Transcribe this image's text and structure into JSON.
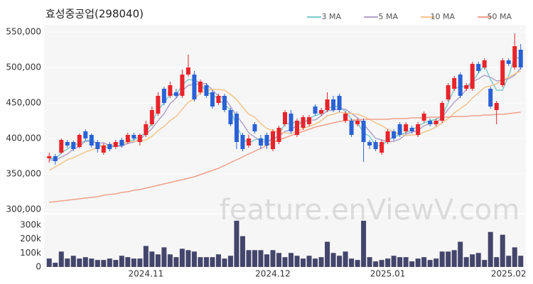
{
  "chart_data": {
    "type": "candlestick",
    "title": "효성중공업(298040)",
    "watermark": "feature.enViewV.com",
    "categories": [
      null,
      null,
      null,
      null,
      null,
      null,
      null,
      null,
      null,
      null,
      null,
      null,
      null,
      null,
      null,
      null,
      "2024.11",
      null,
      null,
      null,
      null,
      null,
      null,
      null,
      null,
      null,
      null,
      null,
      null,
      null,
      null,
      null,
      null,
      null,
      null,
      null,
      null,
      "2024.12",
      null,
      null,
      null,
      null,
      null,
      null,
      null,
      null,
      null,
      null,
      null,
      null,
      null,
      null,
      null,
      null,
      null,
      null,
      "2025.01",
      null,
      null,
      null,
      null,
      null,
      null,
      null,
      null,
      null,
      null,
      null,
      null,
      null,
      null,
      null,
      null,
      null,
      null,
      null,
      "2025.02",
      null,
      null
    ],
    "open": [
      372000,
      375000,
      380000,
      395000,
      395000,
      388000,
      410000,
      405000,
      395000,
      380000,
      392000,
      388000,
      398000,
      395000,
      405000,
      395000,
      405000,
      420000,
      435000,
      470000,
      460000,
      465000,
      460000,
      490000,
      490000,
      465000,
      475000,
      465000,
      450000,
      460000,
      440000,
      435000,
      405000,
      390000,
      420000,
      400000,
      405000,
      385000,
      395000,
      420000,
      435000,
      405000,
      415000,
      420000,
      445000,
      435000,
      440000,
      455000,
      460000,
      425000,
      425000,
      420000,
      425000,
      395000,
      395000,
      380000,
      395000,
      410000,
      420000,
      410000,
      415000,
      405000,
      425000,
      425000,
      420000,
      425000,
      455000,
      470000,
      490000,
      470000,
      470000,
      505000,
      500000,
      470000,
      440000,
      475000,
      510000,
      500000,
      525000
    ],
    "high": [
      380000,
      378000,
      400000,
      398000,
      397000,
      407000,
      413000,
      407000,
      398000,
      393000,
      395000,
      398000,
      401000,
      408000,
      408000,
      407000,
      425000,
      445000,
      465000,
      473000,
      480000,
      470000,
      497000,
      518000,
      495000,
      483000,
      478000,
      468000,
      463000,
      463000,
      443000,
      438000,
      408000,
      405000,
      423000,
      405000,
      408000,
      413000,
      418000,
      440000,
      440000,
      428000,
      433000,
      433000,
      448000,
      443000,
      465000,
      460000,
      463000,
      438000,
      428000,
      428000,
      428000,
      398000,
      398000,
      398000,
      413000,
      413000,
      423000,
      423000,
      418000,
      423000,
      438000,
      428000,
      428000,
      453000,
      478000,
      488000,
      493000,
      478000,
      508000,
      508000,
      513000,
      473000,
      453000,
      513000,
      513000,
      548000,
      533000
    ],
    "low": [
      366000,
      363000,
      378000,
      387000,
      382000,
      386000,
      397000,
      387000,
      380000,
      377000,
      382000,
      385000,
      387000,
      392000,
      397000,
      390000,
      402000,
      417000,
      432000,
      447000,
      457000,
      457000,
      457000,
      487000,
      452000,
      462000,
      457000,
      442000,
      447000,
      437000,
      417000,
      385000,
      382000,
      387000,
      407000,
      385000,
      385000,
      382000,
      392000,
      417000,
      407000,
      402000,
      412000,
      417000,
      432000,
      432000,
      437000,
      437000,
      437000,
      422000,
      402000,
      417000,
      367000,
      385000,
      382000,
      377000,
      392000,
      397000,
      402000,
      407000,
      407000,
      402000,
      422000,
      417000,
      417000,
      422000,
      452000,
      467000,
      457000,
      467000,
      467000,
      492000,
      497000,
      442000,
      420000,
      472000,
      502000,
      497000,
      497000
    ],
    "close": [
      375000,
      368000,
      398000,
      390000,
      385000,
      405000,
      400000,
      390000,
      385000,
      390000,
      385000,
      395000,
      390000,
      405000,
      400000,
      405000,
      420000,
      440000,
      460000,
      450000,
      475000,
      460000,
      490000,
      500000,
      455000,
      480000,
      460000,
      445000,
      460000,
      440000,
      420000,
      395000,
      385000,
      400000,
      410000,
      390000,
      390000,
      410000,
      415000,
      437000,
      410000,
      425000,
      430000,
      430000,
      435000,
      440000,
      455000,
      440000,
      440000,
      435000,
      405000,
      425000,
      395000,
      390000,
      385000,
      395000,
      410000,
      400000,
      405000,
      420000,
      410000,
      420000,
      435000,
      420000,
      425000,
      450000,
      475000,
      485000,
      460000,
      475000,
      505000,
      495000,
      510000,
      445000,
      450000,
      510000,
      505000,
      530000,
      500000
    ],
    "up_color": "#e8242a",
    "down_color": "#2a62d6",
    "ylim": [
      295000,
      555000
    ],
    "yticks": [
      {
        "value": 300000,
        "label": "300,000"
      },
      {
        "value": 350000,
        "label": "350,000"
      },
      {
        "value": 400000,
        "label": "400,000"
      },
      {
        "value": 450000,
        "label": "450,000"
      },
      {
        "value": 500000,
        "label": "500,000"
      },
      {
        "value": 550000,
        "label": "550,000"
      }
    ],
    "grid": true,
    "legend": "top-right",
    "series": [
      {
        "name": "3 MA",
        "color": "#7ccccc",
        "values": [
          372000,
          371000,
          380000,
          385000,
          391000,
          393000,
          397000,
          398000,
          392000,
          388000,
          387000,
          390000,
          390000,
          397000,
          398000,
          403000,
          408000,
          422000,
          440000,
          450000,
          462000,
          462000,
          475000,
          483000,
          482000,
          478000,
          465000,
          462000,
          455000,
          448000,
          440000,
          418000,
          400000,
          393000,
          398000,
          400000,
          397000,
          397000,
          405000,
          421000,
          421000,
          424000,
          422000,
          428000,
          432000,
          435000,
          443000,
          445000,
          445000,
          438000,
          427000,
          422000,
          408000,
          403000,
          390000,
          390000,
          397000,
          402000,
          405000,
          408000,
          412000,
          417000,
          422000,
          425000,
          427000,
          432000,
          450000,
          470000,
          473000,
          473000,
          480000,
          492000,
          503000,
          483000,
          468000,
          468000,
          488000,
          515000,
          512000
        ]
      },
      {
        "name": "5 MA",
        "color": "#b1a1c9",
        "values": [
          370000,
          369000,
          374000,
          378000,
          385000,
          389000,
          396000,
          396000,
          393000,
          394000,
          390000,
          389000,
          389000,
          393000,
          395000,
          399000,
          406000,
          414000,
          425000,
          435000,
          449000,
          457000,
          467000,
          475000,
          476000,
          477000,
          477000,
          468000,
          460000,
          457000,
          445000,
          432000,
          421000,
          408000,
          402000,
          396000,
          395000,
          400000,
          403000,
          410000,
          412000,
          419000,
          423000,
          426000,
          426000,
          432000,
          439000,
          440000,
          442000,
          441000,
          435000,
          429000,
          420000,
          410000,
          400000,
          398000,
          395000,
          396000,
          399000,
          406000,
          409000,
          411000,
          418000,
          421000,
          422000,
          430000,
          441000,
          451000,
          459000,
          469000,
          480000,
          484000,
          489000,
          486000,
          481000,
          482000,
          484000,
          489000,
          499000
        ]
      },
      {
        "name": "10 MA",
        "color": "#f2c48e",
        "values": [
          355000,
          360000,
          365000,
          370000,
          373000,
          377000,
          381000,
          384000,
          387000,
          390000,
          391000,
          394000,
          393000,
          395000,
          396000,
          396000,
          398000,
          403000,
          411000,
          417000,
          425000,
          431000,
          441000,
          451000,
          456000,
          464000,
          468000,
          469000,
          469000,
          468000,
          462000,
          455000,
          444000,
          434000,
          430000,
          421000,
          414000,
          411000,
          408000,
          408000,
          407000,
          410000,
          414000,
          417000,
          420000,
          425000,
          432000,
          434000,
          437000,
          436000,
          435000,
          434000,
          431000,
          427000,
          422000,
          418000,
          413000,
          409000,
          406000,
          404000,
          405000,
          405000,
          409000,
          412000,
          416000,
          422000,
          428000,
          436000,
          442000,
          448000,
          457000,
          464000,
          472000,
          474000,
          477000,
          483000,
          486000,
          491000,
          495000
        ]
      },
      {
        "name": "50 MA",
        "color": "#f0a08a",
        "values": [
          310000,
          311000,
          312000,
          313000,
          314000,
          315000,
          316000,
          317000,
          318000,
          320000,
          321000,
          322000,
          324000,
          325000,
          327000,
          328000,
          330000,
          332000,
          334000,
          336000,
          338000,
          340000,
          342000,
          344000,
          346000,
          349000,
          352000,
          355000,
          358000,
          362000,
          366000,
          370000,
          374000,
          378000,
          382000,
          386000,
          390000,
          394000,
          398000,
          401000,
          404000,
          407000,
          410000,
          413000,
          416000,
          418000,
          420000,
          422000,
          424000,
          425000,
          426000,
          426000,
          427000,
          427000,
          427000,
          427000,
          427000,
          428000,
          428000,
          428000,
          429000,
          429000,
          429000,
          430000,
          430000,
          430000,
          430000,
          431000,
          431000,
          431000,
          432000,
          432000,
          433000,
          433000,
          434000,
          434000,
          435000,
          436000,
          437000
        ]
      }
    ],
    "volume": {
      "color": "#43456b",
      "ylim": [
        0,
        375000
      ],
      "yticks": [
        0,
        {
          "value": 100000,
          "label": "100k"
        },
        {
          "value": 200000,
          "label": "200k"
        },
        {
          "value": 300000,
          "label": "300k"
        }
      ],
      "values": [
        60000,
        30000,
        110000,
        60000,
        80000,
        60000,
        70000,
        60000,
        50000,
        50000,
        60000,
        50000,
        80000,
        70000,
        60000,
        60000,
        150000,
        110000,
        90000,
        140000,
        90000,
        70000,
        130000,
        120000,
        110000,
        70000,
        70000,
        70000,
        90000,
        60000,
        80000,
        330000,
        220000,
        120000,
        120000,
        120000,
        90000,
        120000,
        100000,
        70000,
        100000,
        80000,
        60000,
        80000,
        60000,
        70000,
        180000,
        100000,
        80000,
        110000,
        60000,
        50000,
        330000,
        70000,
        40000,
        50000,
        60000,
        80000,
        70000,
        70000,
        40000,
        60000,
        70000,
        50000,
        60000,
        110000,
        110000,
        120000,
        180000,
        70000,
        90000,
        100000,
        50000,
        250000,
        70000,
        230000,
        80000,
        140000,
        80000
      ]
    }
  }
}
